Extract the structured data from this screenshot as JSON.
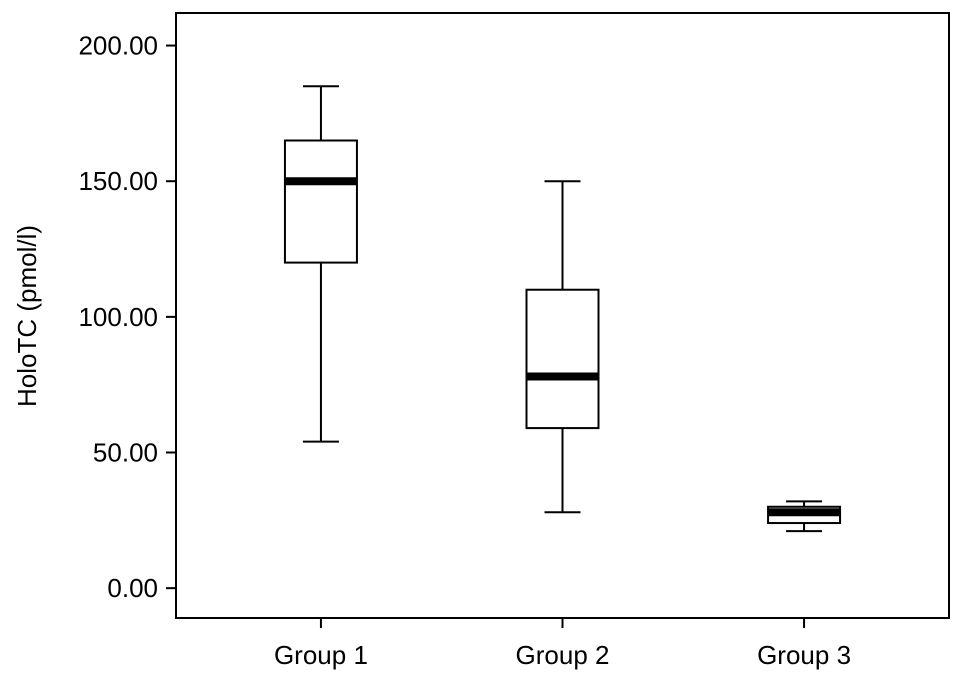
{
  "chart_data": {
    "type": "boxplot",
    "title": "",
    "xlabel": "",
    "ylabel": "HoloTC (pmol/l)",
    "ylim": [
      -11,
      212
    ],
    "yticks": [
      "0.00",
      "50.00",
      "100.00",
      "150.00",
      "200.00"
    ],
    "ytick_values": [
      0,
      50,
      100,
      150,
      200
    ],
    "categories": [
      "Group 1",
      "Group 2",
      "Group 3"
    ],
    "boxes": [
      {
        "category": "Group 1",
        "min": 54,
        "q1": 120,
        "median": 150,
        "q3": 165,
        "max": 185
      },
      {
        "category": "Group 2",
        "min": 28,
        "q1": 59,
        "median": 78,
        "q3": 110,
        "max": 150
      },
      {
        "category": "Group 3",
        "min": 21,
        "q1": 24,
        "median": 28,
        "q3": 30,
        "max": 32
      }
    ],
    "grid": false,
    "legend": "none",
    "colors": {
      "box_fill": "#ffffff",
      "stroke": "#000000",
      "median": "#000000"
    }
  }
}
